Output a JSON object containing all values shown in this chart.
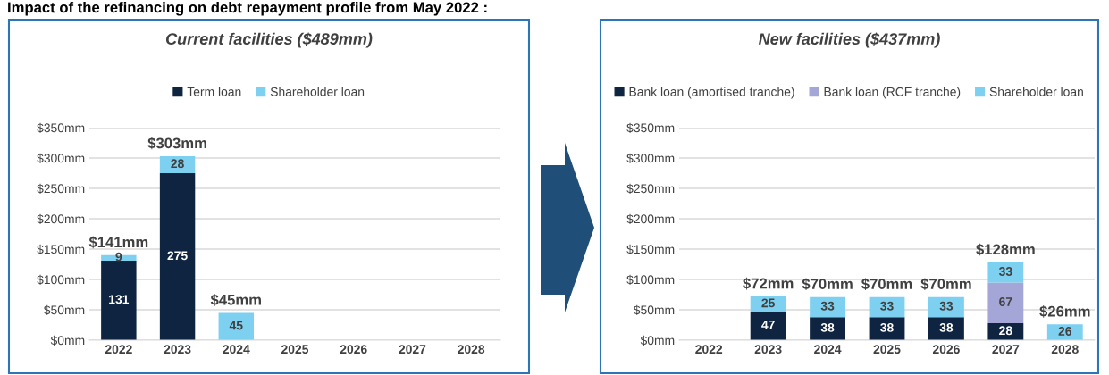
{
  "chart_data": [
    {
      "type": "bar",
      "title": "Current facilities ($489mm)",
      "stacked": true,
      "data_labels": true,
      "grid": "y",
      "legend": "top",
      "annotations": [
        "Impact of the refinancing on debt repayment profile from May 2022 :"
      ],
      "categories": [
        "2022",
        "2023",
        "2024",
        "2025",
        "2026",
        "2027",
        "2028"
      ],
      "series": [
        {
          "name": "Term loan",
          "color": "#0f2440",
          "values": [
            131,
            275,
            null,
            null,
            null,
            null,
            null
          ]
        },
        {
          "name": "Shareholder loan",
          "color": "#7dd0f0",
          "values": [
            9,
            28,
            45,
            null,
            null,
            null,
            null
          ]
        }
      ],
      "totals": [
        "$141mm",
        "$303mm",
        "$45mm",
        null,
        null,
        null,
        null
      ],
      "ylim": [
        0,
        350
      ],
      "yticks": [
        {
          "value": 0,
          "label": "$0mm"
        },
        {
          "value": 50,
          "label": "$50mm"
        },
        {
          "value": 100,
          "label": "$100mm"
        },
        {
          "value": 150,
          "label": "$150mm"
        },
        {
          "value": 200,
          "label": "$200mm"
        },
        {
          "value": 250,
          "label": "$250mm"
        },
        {
          "value": 300,
          "label": "$300mm"
        },
        {
          "value": 350,
          "label": "$350mm"
        }
      ]
    },
    {
      "type": "bar",
      "title": "New facilities ($437mm)",
      "stacked": true,
      "data_labels": true,
      "grid": "y",
      "legend": "top",
      "categories": [
        "2022",
        "2023",
        "2024",
        "2025",
        "2026",
        "2027",
        "2028"
      ],
      "series": [
        {
          "name": "Bank loan (amortised tranche)",
          "color": "#0f2440",
          "values": [
            null,
            47,
            38,
            38,
            38,
            28,
            null
          ]
        },
        {
          "name": "Bank loan (RCF tranche)",
          "color": "#a3a6d6",
          "values": [
            null,
            null,
            null,
            null,
            null,
            67,
            null
          ]
        },
        {
          "name": "Shareholder loan",
          "color": "#7dd0f0",
          "values": [
            null,
            25,
            33,
            33,
            33,
            33,
            26
          ]
        }
      ],
      "totals": [
        null,
        "$72mm",
        "$70mm",
        "$70mm",
        "$70mm",
        "$128mm",
        "$26mm"
      ],
      "ylim": [
        0,
        350
      ],
      "yticks": [
        {
          "value": 0,
          "label": "$0mm"
        },
        {
          "value": 50,
          "label": "$50mm"
        },
        {
          "value": 100,
          "label": "$100mm"
        },
        {
          "value": 150,
          "label": "$150mm"
        },
        {
          "value": 200,
          "label": "$200mm"
        },
        {
          "value": 250,
          "label": "$250mm"
        },
        {
          "value": 300,
          "label": "$300mm"
        },
        {
          "value": 350,
          "label": "$350mm"
        }
      ]
    }
  ]
}
